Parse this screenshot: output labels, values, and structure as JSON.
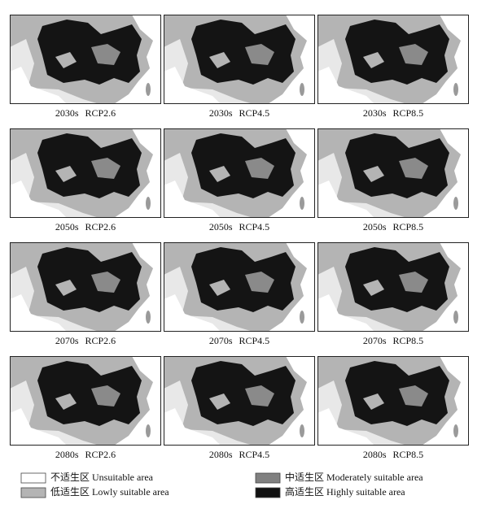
{
  "panels": [
    {
      "period": "2030s",
      "scenario": "RCP2.6"
    },
    {
      "period": "2030s",
      "scenario": "RCP4.5"
    },
    {
      "period": "2030s",
      "scenario": "RCP8.5"
    },
    {
      "period": "2050s",
      "scenario": "RCP2.6"
    },
    {
      "period": "2050s",
      "scenario": "RCP4.5"
    },
    {
      "period": "2050s",
      "scenario": "RCP8.5"
    },
    {
      "period": "2070s",
      "scenario": "RCP2.6"
    },
    {
      "period": "2070s",
      "scenario": "RCP4.5"
    },
    {
      "period": "2070s",
      "scenario": "RCP8.5"
    },
    {
      "period": "2080s",
      "scenario": "RCP2.6"
    },
    {
      "period": "2080s",
      "scenario": "RCP4.5"
    },
    {
      "period": "2080s",
      "scenario": "RCP8.5"
    }
  ],
  "legend": [
    {
      "label": "不适生区 Unsuitable area",
      "color": "#ffffff"
    },
    {
      "label": "低适生区 Lowly suitable area",
      "color": "#b4b4b4"
    },
    {
      "label": "中适生区 Moderately suitable area",
      "color": "#808080"
    },
    {
      "label": "高适生区 Highly suitable area",
      "color": "#111111"
    }
  ]
}
